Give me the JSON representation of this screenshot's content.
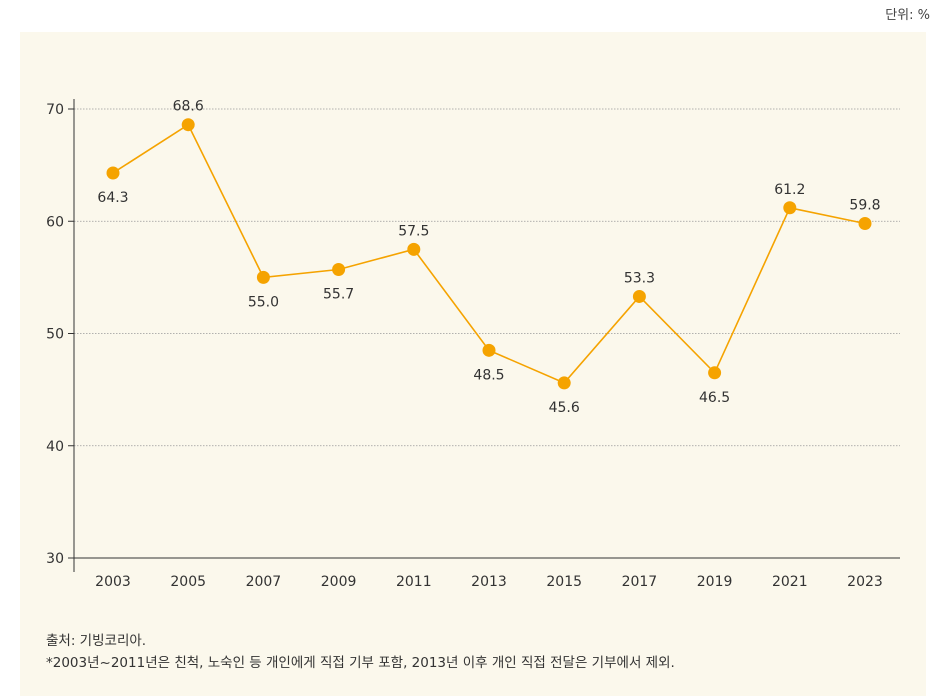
{
  "unit_label": "단위: %",
  "chart_data": {
    "type": "line",
    "title": "",
    "xlabel": "",
    "ylabel": "",
    "categories": [
      "2003",
      "2005",
      "2007",
      "2009",
      "2011",
      "2013",
      "2015",
      "2017",
      "2019",
      "2021",
      "2023"
    ],
    "series": [
      {
        "values": [
          64.3,
          68.6,
          55.0,
          55.7,
          57.5,
          48.5,
          45.6,
          53.3,
          46.5,
          61.2,
          59.8
        ],
        "labels": [
          "64.3",
          "68.6",
          "55.0",
          "55.7",
          "57.5",
          "48.5",
          "45.6",
          "53.3",
          "46.5",
          "61.2",
          "59.8"
        ],
        "color": "#f5a300"
      }
    ],
    "ylim": [
      30,
      70
    ],
    "yticks": [
      30,
      40,
      50,
      60,
      70
    ],
    "ytick_labels": [
      "30",
      "40",
      "50",
      "60",
      "70"
    ],
    "label_positions": [
      "below",
      "above",
      "below",
      "below",
      "above",
      "below",
      "below",
      "above",
      "below",
      "above",
      "above"
    ],
    "grid": true,
    "grid_color": "#999999",
    "axis_color": "#333333"
  },
  "notes": {
    "source": "출처: 기빙코리아.",
    "footnote": "*2003년~2011년은 친척, 노숙인 등 개인에게 직접 기부 포함, 2013년 이후 개인 직접 전달은 기부에서 제외."
  }
}
